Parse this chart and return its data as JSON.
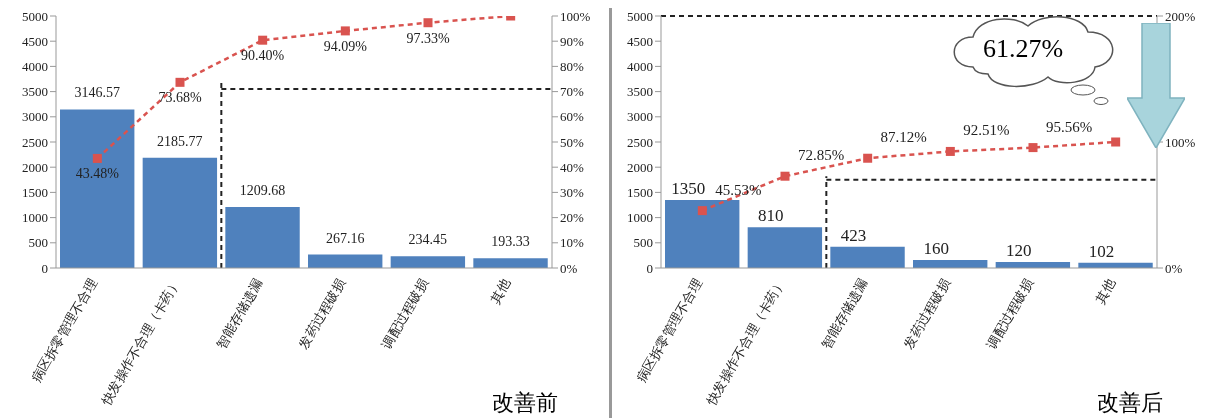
{
  "chart_data": [
    {
      "type": "bar",
      "title": "改善前",
      "categories": [
        "病区拆零管理不合理",
        "快发操作不合理（卡药）",
        "智能存储遗漏",
        "发药过程破损",
        "调配过程破损",
        "其他"
      ],
      "data_labels": true,
      "ylim": [
        0,
        5000
      ],
      "yticks": [
        0,
        500,
        1000,
        1500,
        2000,
        2500,
        3000,
        3500,
        4000,
        4500,
        5000
      ],
      "y2lim": [
        0,
        100
      ],
      "y2ticks": [
        {
          "value": 0,
          "label": "0%"
        },
        {
          "value": 10,
          "label": "10%"
        },
        {
          "value": 20,
          "label": "20%"
        },
        {
          "value": 30,
          "label": "30%"
        },
        {
          "value": 40,
          "label": "40%"
        },
        {
          "value": 50,
          "label": "50%"
        },
        {
          "value": 60,
          "label": "60%"
        },
        {
          "value": 70,
          "label": "70%"
        },
        {
          "value": 80,
          "label": "80%"
        },
        {
          "value": 90,
          "label": "90%"
        },
        {
          "value": 100,
          "label": "100%"
        }
      ],
      "grid": false,
      "legend": false,
      "series": [
        {
          "color": "#4f81bd",
          "values": [
            3146.57,
            2185.77,
            1209.68,
            267.16,
            234.45,
            193.33
          ]
        },
        {
          "type": "line",
          "axis": "y2",
          "color": "#d9534f",
          "marker": "square",
          "line_style": "dashed",
          "values": [
            43.48,
            73.68,
            90.4,
            94.09,
            97.33,
            100
          ],
          "value_labels": [
            "43.48%",
            "73.68%",
            "90.40%",
            "94.09%",
            "97.33%",
            null
          ]
        }
      ],
      "ref_lines": [
        {
          "axis": "y2",
          "value": 71,
          "color": "#222222",
          "line_style": "dashed"
        }
      ]
    },
    {
      "type": "bar",
      "title": "改善后",
      "categories": [
        "病区拆零管理不合理",
        "快发操作不合理（卡药）",
        "智能存储遗漏",
        "发药过程破损",
        "调配过程破损",
        "其他"
      ],
      "data_labels": true,
      "ylim": [
        0,
        5000
      ],
      "yticks": [
        0,
        500,
        1000,
        1500,
        2000,
        2500,
        3000,
        3500,
        4000,
        4500,
        5000
      ],
      "y2lim": [
        0,
        200
      ],
      "y2ticks": [
        {
          "value": 0,
          "label": "0%"
        },
        {
          "value": 100,
          "label": "100%"
        },
        {
          "value": 200,
          "label": "200%"
        }
      ],
      "grid": false,
      "legend": false,
      "annotations": [
        "61.27%"
      ],
      "series": [
        {
          "color": "#4f81bd",
          "values": [
            1350,
            810,
            423,
            160,
            120,
            102
          ]
        },
        {
          "type": "line",
          "axis": "y2",
          "color": "#d9534f",
          "marker": "square",
          "line_style": "dashed",
          "values": [
            45.53,
            72.85,
            87.12,
            92.51,
            95.56,
            100
          ],
          "value_labels": [
            "45.53%",
            "72.85%",
            "87.12%",
            "92.51%",
            "95.56%",
            null
          ]
        }
      ],
      "ref_lines": [
        {
          "axis": "y2",
          "value": 70,
          "color": "#222222",
          "line_style": "dashed"
        },
        {
          "axis": "y",
          "value": 5000,
          "color": "#222222",
          "line_style": "dashed"
        }
      ]
    }
  ]
}
